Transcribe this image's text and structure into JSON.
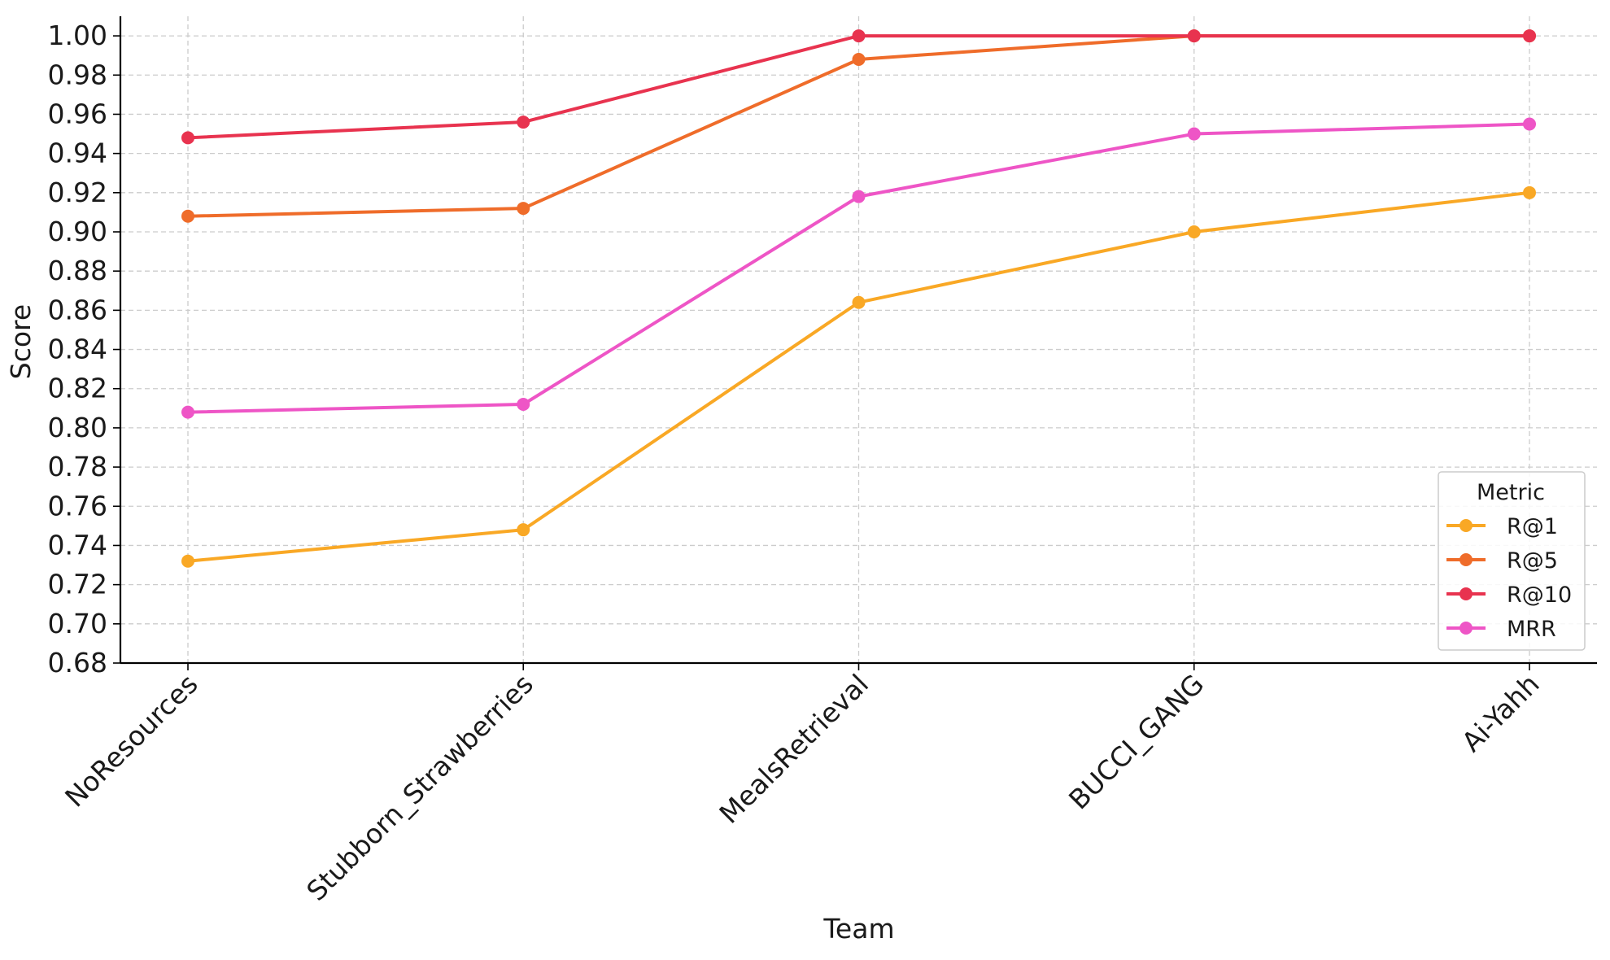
{
  "chart_data": {
    "type": "line",
    "title": "",
    "xlabel": "Team",
    "ylabel": "Score",
    "categories": [
      "NoResources",
      "Stubborn_Strawberries",
      "MealsRetrieval",
      "BUCCI_GANG",
      "Ai-Yahh"
    ],
    "ylim": [
      0.68,
      1.01
    ],
    "yticks": [
      "0.68",
      "0.70",
      "0.72",
      "0.74",
      "0.76",
      "0.78",
      "0.80",
      "0.82",
      "0.84",
      "0.86",
      "0.88",
      "0.90",
      "0.92",
      "0.94",
      "0.96",
      "0.98",
      "1.00"
    ],
    "grid": true,
    "legend": {
      "title": "Metric",
      "position": "lower-right"
    },
    "series": [
      {
        "name": "R@1",
        "color": "#f9a825",
        "values": [
          0.732,
          0.748,
          0.864,
          0.9,
          0.92
        ]
      },
      {
        "name": "R@5",
        "color": "#ef6c2a",
        "values": [
          0.908,
          0.912,
          0.988,
          1.0,
          1.0
        ]
      },
      {
        "name": "R@10",
        "color": "#e8334f",
        "values": [
          0.948,
          0.956,
          1.0,
          1.0,
          1.0
        ]
      },
      {
        "name": "MRR",
        "color": "#ee55c6",
        "values": [
          0.808,
          0.812,
          0.918,
          0.95,
          0.955
        ]
      }
    ]
  }
}
